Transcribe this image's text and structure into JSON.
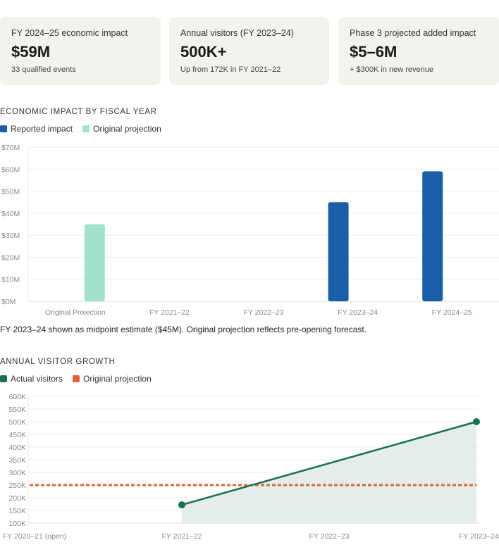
{
  "cards": [
    {
      "label": "FY 2024–25 economic impact",
      "value": "$59M",
      "sub": "33 qualified events"
    },
    {
      "label": "Annual visitors (FY 2023–24)",
      "value": "500K+",
      "sub": "Up from 172K in FY 2021–22"
    },
    {
      "label": "Phase 3 projected added impact",
      "value": "$5–6M",
      "sub": "+ $300K in new revenue"
    }
  ],
  "note": "FY 2023–24 shown as midpoint estimate ($45M). Original projection reflects pre-opening forecast.",
  "colors": {
    "reported": "#1a5ea8",
    "projection": "#a2e2cb",
    "visitors": "#17704f",
    "orig": "#e0623a",
    "fill": "#e4edea"
  },
  "chart_data": [
    {
      "type": "bar",
      "title": "ECONOMIC IMPACT BY FISCAL YEAR",
      "categories": [
        "Original Projection",
        "FY 2021–22",
        "FY 2022–23",
        "FY 2023–24",
        "FY 2024–25"
      ],
      "series": [
        {
          "name": "Reported impact",
          "values": [
            null,
            null,
            null,
            45,
            59
          ]
        },
        {
          "name": "Original projection",
          "values": [
            35,
            null,
            null,
            null,
            null
          ]
        }
      ],
      "ylim": [
        0,
        70
      ],
      "yticks": [
        "$0M",
        "$10M",
        "$20M",
        "$30M",
        "$40M",
        "$50M",
        "$60M",
        "$70M"
      ],
      "legend": "top-left",
      "grid": true
    },
    {
      "type": "line",
      "title": "ANNUAL VISITOR GROWTH",
      "categories": [
        "FY 2020–21 (open)",
        "FY 2021–22",
        "FY 2022–23",
        "FY 2023–24"
      ],
      "series": [
        {
          "name": "Actual visitors",
          "values": [
            null,
            172000,
            null,
            500000
          ]
        },
        {
          "name": "Original projection",
          "values": [
            250000,
            250000,
            250000,
            250000
          ]
        }
      ],
      "ylim": [
        100000,
        600000
      ],
      "yticks": [
        "100K",
        "150K",
        "200K",
        "250K",
        "300K",
        "350K",
        "400K",
        "450K",
        "500K",
        "550K",
        "600K"
      ],
      "legend": "top-left",
      "grid": true
    }
  ]
}
